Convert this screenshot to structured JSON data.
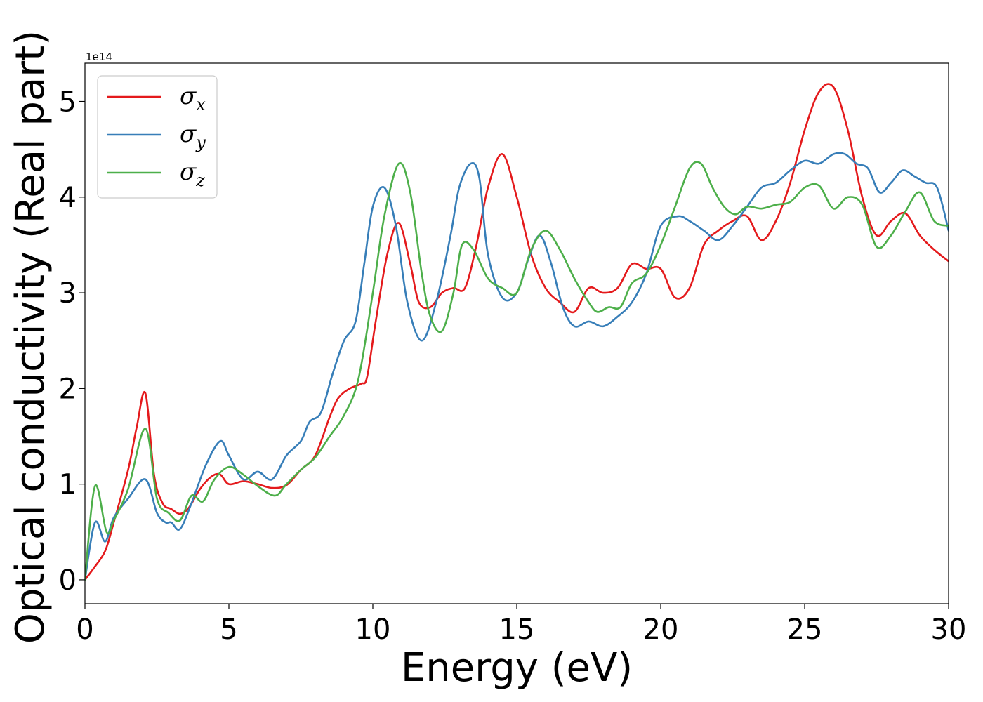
{
  "chart_data": {
    "type": "line",
    "title": "",
    "xlabel": "Energy (eV)",
    "ylabel": "Optical conductivity (Real part)",
    "y_offset_text": "1e14",
    "xlim": [
      0,
      30
    ],
    "ylim": [
      -0.25,
      5.4
    ],
    "y_scale_factor": 100000000000000.0,
    "xticks": [
      0,
      5,
      10,
      15,
      20,
      25,
      30
    ],
    "xtick_labels": [
      "0",
      "5",
      "10",
      "15",
      "20",
      "25",
      "30"
    ],
    "yticks": [
      0,
      1,
      2,
      3,
      4,
      5
    ],
    "ytick_labels": [
      "0",
      "1",
      "2",
      "3",
      "4",
      "5"
    ],
    "grid": false,
    "legend_position": "top-left",
    "series": [
      {
        "name": "σx",
        "symbol": "σ",
        "subscript": "x",
        "color": "#e41a1c",
        "x": [
          0,
          0.3,
          0.7,
          1.0,
          1.5,
          1.8,
          2.1,
          2.4,
          2.7,
          3.0,
          3.3,
          3.6,
          4.0,
          4.4,
          4.7,
          5.0,
          5.5,
          6.0,
          6.5,
          7.0,
          7.5,
          8.0,
          8.5,
          8.8,
          9.2,
          9.6,
          9.8,
          10.1,
          10.5,
          10.9,
          11.3,
          11.6,
          12.0,
          12.4,
          12.8,
          13.2,
          13.6,
          14.0,
          14.5,
          15.0,
          15.5,
          16.0,
          16.5,
          17.0,
          17.5,
          18.0,
          18.5,
          19.0,
          19.5,
          20.0,
          20.5,
          21.0,
          21.5,
          22.0,
          22.5,
          23.0,
          23.5,
          24.0,
          24.5,
          25.0,
          25.5,
          26.0,
          26.5,
          27.0,
          27.5,
          28.0,
          28.5,
          29.0,
          29.5,
          30.0
        ],
        "values": [
          0,
          0.12,
          0.3,
          0.6,
          1.15,
          1.6,
          1.95,
          1.1,
          0.8,
          0.74,
          0.69,
          0.75,
          0.95,
          1.08,
          1.1,
          1.0,
          1.03,
          1.0,
          0.96,
          0.99,
          1.15,
          1.3,
          1.7,
          1.9,
          2.0,
          2.05,
          2.12,
          2.7,
          3.4,
          3.73,
          3.3,
          2.9,
          2.85,
          3.0,
          3.05,
          3.05,
          3.5,
          4.1,
          4.45,
          4.0,
          3.4,
          3.05,
          2.9,
          2.8,
          3.05,
          3.0,
          3.05,
          3.3,
          3.25,
          3.25,
          2.95,
          3.05,
          3.5,
          3.65,
          3.75,
          3.8,
          3.55,
          3.75,
          4.15,
          4.7,
          5.1,
          5.15,
          4.7,
          4.0,
          3.6,
          3.75,
          3.83,
          3.6,
          3.45,
          3.33
        ]
      },
      {
        "name": "σy",
        "symbol": "σ",
        "subscript": "y",
        "color": "#377eb8",
        "x": [
          0,
          0.35,
          0.7,
          1.0,
          1.5,
          2.1,
          2.5,
          2.8,
          3.0,
          3.3,
          3.7,
          4.2,
          4.7,
          5.0,
          5.5,
          6.0,
          6.5,
          7.0,
          7.5,
          7.8,
          8.2,
          8.6,
          9.0,
          9.4,
          9.7,
          10.0,
          10.4,
          10.8,
          11.2,
          11.7,
          12.2,
          12.7,
          13.0,
          13.4,
          13.7,
          14.0,
          14.5,
          15.0,
          15.4,
          15.8,
          16.2,
          16.6,
          17.0,
          17.5,
          18.0,
          18.5,
          19.0,
          19.5,
          20.0,
          20.6,
          21.0,
          21.5,
          22.0,
          22.5,
          23.0,
          23.5,
          24.0,
          24.5,
          25.0,
          25.5,
          26.0,
          26.4,
          26.8,
          27.2,
          27.6,
          28.0,
          28.4,
          28.8,
          29.2,
          29.6,
          30.0
        ],
        "values": [
          0,
          0.6,
          0.4,
          0.65,
          0.85,
          1.05,
          0.7,
          0.6,
          0.6,
          0.53,
          0.8,
          1.2,
          1.45,
          1.3,
          1.05,
          1.13,
          1.05,
          1.3,
          1.45,
          1.65,
          1.75,
          2.15,
          2.5,
          2.7,
          3.3,
          3.9,
          4.1,
          3.7,
          2.9,
          2.5,
          2.9,
          3.6,
          4.1,
          4.35,
          4.2,
          3.4,
          2.95,
          3.0,
          3.35,
          3.6,
          3.3,
          2.85,
          2.65,
          2.7,
          2.65,
          2.75,
          2.9,
          3.2,
          3.7,
          3.8,
          3.75,
          3.65,
          3.55,
          3.7,
          3.9,
          4.1,
          4.15,
          4.28,
          4.38,
          4.35,
          4.45,
          4.45,
          4.35,
          4.3,
          4.05,
          4.15,
          4.28,
          4.22,
          4.15,
          4.1,
          3.65
        ]
      },
      {
        "name": "σz",
        "symbol": "σ",
        "subscript": "z",
        "color": "#4daf4a",
        "x": [
          0,
          0.35,
          0.75,
          1.0,
          1.5,
          2.1,
          2.5,
          2.9,
          3.3,
          3.7,
          4.1,
          4.5,
          5.0,
          5.5,
          6.0,
          6.6,
          7.0,
          7.5,
          8.0,
          8.5,
          9.0,
          9.5,
          10.0,
          10.4,
          10.9,
          11.3,
          11.7,
          12.0,
          12.4,
          12.8,
          13.1,
          13.5,
          14.0,
          14.5,
          15.0,
          15.5,
          16.0,
          16.5,
          17.0,
          17.5,
          17.8,
          18.2,
          18.6,
          19.0,
          19.5,
          20.0,
          20.5,
          21.0,
          21.4,
          21.8,
          22.2,
          22.6,
          23.0,
          23.5,
          24.0,
          24.5,
          25.0,
          25.5,
          26.0,
          26.5,
          27.0,
          27.5,
          28.0,
          28.5,
          29.0,
          29.5,
          30.0
        ],
        "values": [
          0,
          0.98,
          0.5,
          0.62,
          0.95,
          1.58,
          0.85,
          0.7,
          0.62,
          0.88,
          0.82,
          1.05,
          1.18,
          1.1,
          0.98,
          0.88,
          1.0,
          1.15,
          1.28,
          1.5,
          1.72,
          2.1,
          3.0,
          3.8,
          4.35,
          4.05,
          3.2,
          2.75,
          2.6,
          3.0,
          3.5,
          3.45,
          3.15,
          3.05,
          3.0,
          3.45,
          3.65,
          3.45,
          3.15,
          2.9,
          2.8,
          2.85,
          2.85,
          3.1,
          3.2,
          3.5,
          3.9,
          4.3,
          4.35,
          4.1,
          3.9,
          3.82,
          3.9,
          3.88,
          3.92,
          3.95,
          4.1,
          4.12,
          3.88,
          4.0,
          3.92,
          3.48,
          3.6,
          3.85,
          4.05,
          3.75,
          3.7
        ]
      }
    ]
  }
}
